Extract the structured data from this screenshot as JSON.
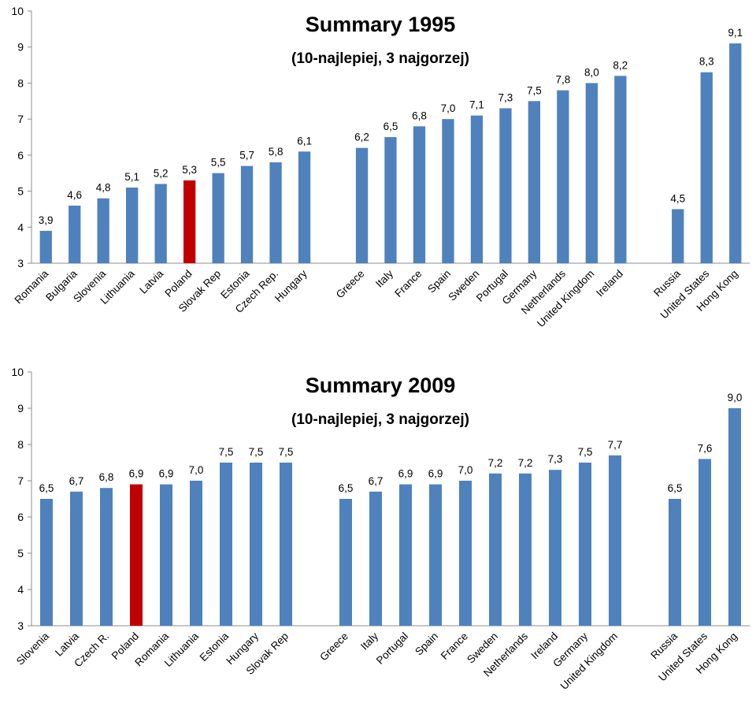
{
  "chart_data": [
    {
      "type": "bar",
      "title": "Summary 1995",
      "subtitle": "(10-najlepiej, 3 najgorzej)",
      "ylim": [
        3,
        10
      ],
      "yticks": [
        "3",
        "4",
        "5",
        "6",
        "7",
        "8",
        "9",
        "10"
      ],
      "grid": false,
      "groups": [
        {
          "categories": [
            "Romania",
            "Bulgaria",
            "Slovenia",
            "Lithuania",
            "Latvia",
            "Poland",
            "Slovak Rep",
            "Estonia",
            "Czech Rep.",
            "Hungary"
          ],
          "values": [
            3.9,
            4.6,
            4.8,
            5.1,
            5.2,
            5.3,
            5.5,
            5.7,
            5.8,
            6.1
          ],
          "labels": [
            "3,9",
            "4,6",
            "4,8",
            "5,1",
            "5,2",
            "5,3",
            "5,5",
            "5,7",
            "5,8",
            "6,1"
          ]
        },
        {
          "categories": [
            "Greece",
            "Italy",
            "France",
            "Spain",
            "Sweden",
            "Portugal",
            "Germany",
            "Netherlands",
            "United Kingdom",
            "Ireland"
          ],
          "values": [
            6.2,
            6.5,
            6.8,
            7.0,
            7.1,
            7.3,
            7.5,
            7.8,
            8.0,
            8.2
          ],
          "labels": [
            "6,2",
            "6,5",
            "6,8",
            "7,0",
            "7,1",
            "7,3",
            "7,5",
            "7,8",
            "8,0",
            "8,2"
          ]
        },
        {
          "categories": [
            "Russia",
            "United States",
            "Hong Kong"
          ],
          "values": [
            4.5,
            8.3,
            9.1
          ],
          "labels": [
            "4,5",
            "8,3",
            "9,1"
          ]
        }
      ],
      "highlight": "Poland",
      "colors": {
        "bar": "#4f81bd",
        "highlight": "#c00000"
      }
    },
    {
      "type": "bar",
      "title": "Summary 2009",
      "subtitle": "(10-najlepiej, 3 najgorzej)",
      "ylim": [
        3,
        10
      ],
      "yticks": [
        "3",
        "4",
        "5",
        "6",
        "7",
        "8",
        "9",
        "10"
      ],
      "grid": false,
      "groups": [
        {
          "categories": [
            "Slovenia",
            "Latvia",
            "Czech R.",
            "Poland",
            "Romania",
            "Lithuania",
            "Estonia",
            "Hungary",
            "Slovak Rep"
          ],
          "values": [
            6.5,
            6.7,
            6.8,
            6.9,
            6.9,
            7.0,
            7.5,
            7.5,
            7.5
          ],
          "labels": [
            "6,5",
            "6,7",
            "6,8",
            "6,9",
            "6,9",
            "7,0",
            "7,5",
            "7,5",
            "7,5"
          ]
        },
        {
          "categories": [
            "Greece",
            "Italy",
            "Portugal",
            "Spain",
            "France",
            "Sweden",
            "Netherlands",
            "Ireland",
            "Germany",
            "United Kingdom"
          ],
          "values": [
            6.5,
            6.7,
            6.9,
            6.9,
            7.0,
            7.2,
            7.2,
            7.3,
            7.5,
            7.7
          ],
          "labels": [
            "6,5",
            "6,7",
            "6,9",
            "6,9",
            "7,0",
            "7,2",
            "7,2",
            "7,3",
            "7,5",
            "7,7"
          ]
        },
        {
          "categories": [
            "Russia",
            "United States",
            "Hong Kong"
          ],
          "values": [
            6.5,
            7.6,
            9.0
          ],
          "labels": [
            "6,5",
            "7,6",
            "9,0"
          ]
        }
      ],
      "highlight": "Poland",
      "colors": {
        "bar": "#4f81bd",
        "highlight": "#c00000"
      }
    }
  ]
}
